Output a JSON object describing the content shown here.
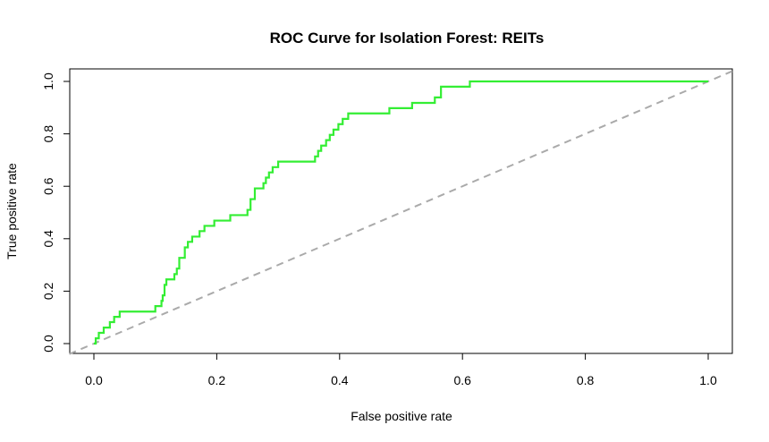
{
  "chart_data": {
    "type": "line",
    "title": "ROC Curve for Isolation Forest: REITs",
    "xlabel": "False positive rate",
    "ylabel": "True positive rate",
    "xlim": [
      0,
      1
    ],
    "ylim": [
      0,
      1
    ],
    "x_ticks": [
      0.0,
      0.2,
      0.4,
      0.6,
      0.8,
      1.0
    ],
    "y_ticks": [
      0.0,
      0.2,
      0.4,
      0.6,
      0.8,
      1.0
    ],
    "x_tick_labels": [
      "0.0",
      "0.2",
      "0.4",
      "0.6",
      "0.8",
      "1.0"
    ],
    "y_tick_labels": [
      "0.0",
      "0.2",
      "0.4",
      "0.6",
      "0.8",
      "1.0"
    ],
    "grid": false,
    "legend": "none",
    "colors": {
      "roc_curve": "#33ee33",
      "reference_line": "#aaaaaa"
    },
    "reference_line": {
      "style": "dashed",
      "x": [
        0,
        1
      ],
      "y": [
        0,
        1
      ]
    },
    "series": [
      {
        "step": true,
        "x": [
          0.0,
          0.003,
          0.008,
          0.016,
          0.026,
          0.033,
          0.042,
          0.052,
          0.062,
          0.086,
          0.1,
          0.11,
          0.112,
          0.115,
          0.118,
          0.131,
          0.135,
          0.139,
          0.148,
          0.153,
          0.16,
          0.172,
          0.18,
          0.196,
          0.222,
          0.25,
          0.255,
          0.262,
          0.276,
          0.28,
          0.285,
          0.291,
          0.3,
          0.315,
          0.36,
          0.365,
          0.37,
          0.378,
          0.384,
          0.39,
          0.398,
          0.405,
          0.414,
          0.424,
          0.434,
          0.481,
          0.518,
          0.555,
          0.565,
          0.612,
          0.62,
          1.0
        ],
        "y": [
          0.0,
          0.02,
          0.041,
          0.061,
          0.082,
          0.102,
          0.122,
          0.122,
          0.122,
          0.122,
          0.143,
          0.163,
          0.184,
          0.224,
          0.245,
          0.265,
          0.286,
          0.327,
          0.367,
          0.388,
          0.408,
          0.429,
          0.449,
          0.469,
          0.49,
          0.51,
          0.551,
          0.592,
          0.612,
          0.633,
          0.653,
          0.673,
          0.694,
          0.694,
          0.714,
          0.735,
          0.755,
          0.776,
          0.796,
          0.816,
          0.837,
          0.857,
          0.878,
          0.878,
          0.878,
          0.898,
          0.918,
          0.939,
          0.98,
          1.0,
          1.0,
          1.0
        ]
      }
    ]
  }
}
